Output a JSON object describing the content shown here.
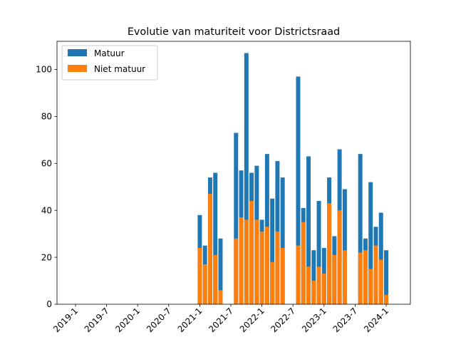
{
  "chart_data": {
    "type": "bar",
    "stacked": false,
    "title": "Evolutie van maturiteit voor Districtsraad",
    "xlabel": "",
    "ylabel": "",
    "x_ticks": [
      "2019-1",
      "2019-7",
      "2020-1",
      "2020-7",
      "2021-1",
      "2021-7",
      "2022-1",
      "2022-7",
      "2023-1",
      "2023-7",
      "2024-1"
    ],
    "y_ticks": [
      0,
      20,
      40,
      60,
      80,
      100
    ],
    "ylim": [
      0,
      112
    ],
    "legend_position": "top-left",
    "grid": false,
    "colors": {
      "Matuur": "#1f77b4",
      "Niet matuur": "#ff7f0e"
    },
    "series": [
      {
        "name": "Matuur",
        "points": [
          [
            "2021-1",
            38
          ],
          [
            "2021-2",
            25
          ],
          [
            "2021-3",
            54
          ],
          [
            "2021-4",
            56
          ],
          [
            "2021-5",
            28
          ],
          [
            "2021-8",
            73
          ],
          [
            "2021-9",
            57
          ],
          [
            "2021-10",
            107
          ],
          [
            "2021-11",
            56
          ],
          [
            "2021-12",
            59
          ],
          [
            "2022-1",
            36
          ],
          [
            "2022-2",
            64
          ],
          [
            "2022-3",
            45
          ],
          [
            "2022-4",
            61
          ],
          [
            "2022-5",
            54
          ],
          [
            "2022-8",
            97
          ],
          [
            "2022-9",
            41
          ],
          [
            "2022-10",
            63
          ],
          [
            "2022-11",
            23
          ],
          [
            "2022-12",
            44
          ],
          [
            "2023-1",
            24
          ],
          [
            "2023-2",
            54
          ],
          [
            "2023-3",
            29
          ],
          [
            "2023-4",
            66
          ],
          [
            "2023-5",
            49
          ],
          [
            "2023-8",
            64
          ],
          [
            "2023-9",
            28
          ],
          [
            "2023-10",
            52
          ],
          [
            "2023-11",
            33
          ],
          [
            "2023-12",
            39
          ],
          [
            "2024-1",
            23
          ]
        ]
      },
      {
        "name": "Niet matuur",
        "points": [
          [
            "2021-1",
            24
          ],
          [
            "2021-2",
            17
          ],
          [
            "2021-3",
            47
          ],
          [
            "2021-4",
            21
          ],
          [
            "2021-5",
            6
          ],
          [
            "2021-8",
            28
          ],
          [
            "2021-9",
            37
          ],
          [
            "2021-10",
            36
          ],
          [
            "2021-11",
            44
          ],
          [
            "2021-12",
            36
          ],
          [
            "2022-1",
            31
          ],
          [
            "2022-2",
            33
          ],
          [
            "2022-3",
            18
          ],
          [
            "2022-4",
            31
          ],
          [
            "2022-5",
            24
          ],
          [
            "2022-8",
            25
          ],
          [
            "2022-9",
            35
          ],
          [
            "2022-10",
            16
          ],
          [
            "2022-11",
            10
          ],
          [
            "2022-12",
            16
          ],
          [
            "2023-1",
            13
          ],
          [
            "2023-2",
            43
          ],
          [
            "2023-3",
            21
          ],
          [
            "2023-4",
            40
          ],
          [
            "2023-5",
            23
          ],
          [
            "2023-8",
            22
          ],
          [
            "2023-9",
            23
          ],
          [
            "2023-10",
            15
          ],
          [
            "2023-11",
            25
          ],
          [
            "2023-12",
            19
          ],
          [
            "2024-1",
            4
          ]
        ]
      }
    ]
  }
}
